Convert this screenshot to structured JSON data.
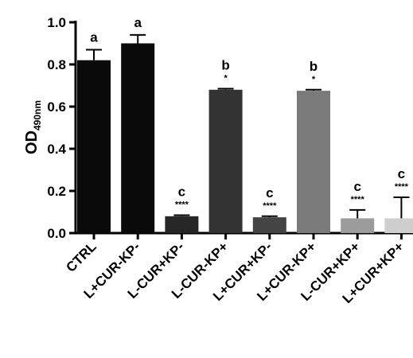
{
  "chart_data": {
    "type": "bar",
    "y_label": "OD",
    "y_label_sub": "490nm",
    "categories": [
      "CTRL",
      "L+CUR-KP-",
      "L-CUR+KP-",
      "L-CUR-KP+",
      "L+CUR+KP-",
      "L+CUR-KP+",
      "L-CUR+KP+",
      "L+CUR+KP+"
    ],
    "values": [
      0.82,
      0.9,
      0.08,
      0.68,
      0.075,
      0.675,
      0.07,
      0.07
    ],
    "errors": [
      0.05,
      0.04,
      0.005,
      0.005,
      0.005,
      0.005,
      0.04,
      0.1
    ],
    "colors": [
      "#0a0a0a",
      "#0a0a0a",
      "#262626",
      "#333333",
      "#444444",
      "#7a7a7a",
      "#9c9c9c",
      "#cfcfcf"
    ],
    "letters": [
      "a",
      "a",
      "c",
      "b",
      "c",
      "b",
      "c",
      "c"
    ],
    "stars": [
      null,
      null,
      "****",
      "*",
      "****",
      "*",
      "****",
      "****"
    ],
    "ylim": [
      0,
      1.0
    ],
    "yticks": [
      {
        "value": 0,
        "label": "0.0"
      },
      0.2,
      0.4,
      0.6,
      0.8,
      {
        "value": 1.0,
        "label": "1.0"
      }
    ]
  }
}
